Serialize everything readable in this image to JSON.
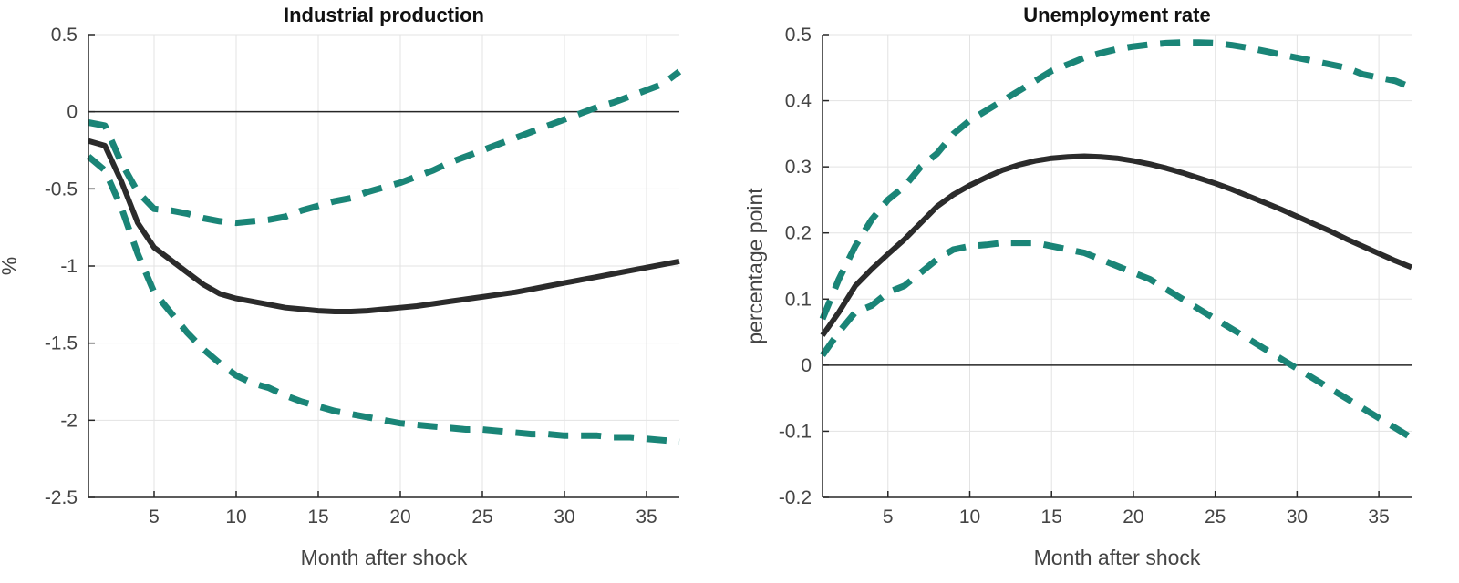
{
  "colors": {
    "median": "#2b2b2b",
    "band": "#1a8577",
    "grid": "#e3e3e3",
    "axis": "#262626",
    "zero_line": "#262626"
  },
  "chart_data": [
    {
      "type": "line",
      "title": "Industrial production",
      "xlabel": "Month after shock",
      "ylabel": "%",
      "xlim": [
        1,
        37
      ],
      "ylim": [
        -2.5,
        0.5
      ],
      "xticks": [
        5,
        10,
        15,
        20,
        25,
        30,
        35
      ],
      "yticks": [
        -2.5,
        -2,
        -1.5,
        -1,
        -0.5,
        0,
        0.5
      ],
      "ytick_labels": [
        "-2.5",
        "-2",
        "-1.5",
        "-1",
        "-0.5",
        "0",
        "0.5"
      ],
      "zero_line": 0,
      "grid": true,
      "x": [
        1,
        2,
        3,
        4,
        5,
        6,
        7,
        8,
        9,
        10,
        11,
        12,
        13,
        14,
        15,
        16,
        17,
        18,
        19,
        20,
        21,
        22,
        23,
        24,
        25,
        26,
        27,
        28,
        29,
        30,
        31,
        32,
        33,
        34,
        35,
        36,
        37
      ],
      "series": [
        {
          "role": "median",
          "style": "solid",
          "values": [
            -0.19,
            -0.22,
            -0.45,
            -0.72,
            -0.88,
            -0.96,
            -1.04,
            -1.12,
            -1.18,
            -1.21,
            -1.23,
            -1.25,
            -1.27,
            -1.28,
            -1.29,
            -1.295,
            -1.295,
            -1.29,
            -1.28,
            -1.27,
            -1.26,
            -1.245,
            -1.23,
            -1.215,
            -1.2,
            -1.185,
            -1.17,
            -1.15,
            -1.13,
            -1.11,
            -1.09,
            -1.07,
            -1.05,
            -1.03,
            -1.01,
            -0.99,
            -0.97
          ]
        },
        {
          "role": "upper-band",
          "style": "dashed",
          "values": [
            -0.07,
            -0.09,
            -0.33,
            -0.52,
            -0.63,
            -0.64,
            -0.66,
            -0.69,
            -0.71,
            -0.72,
            -0.71,
            -0.7,
            -0.68,
            -0.64,
            -0.61,
            -0.58,
            -0.56,
            -0.52,
            -0.49,
            -0.46,
            -0.42,
            -0.38,
            -0.33,
            -0.29,
            -0.25,
            -0.21,
            -0.17,
            -0.13,
            -0.09,
            -0.05,
            -0.01,
            0.03,
            0.06,
            0.1,
            0.14,
            0.18,
            0.26
          ]
        },
        {
          "role": "lower-band",
          "style": "dashed",
          "values": [
            -0.29,
            -0.38,
            -0.62,
            -0.92,
            -1.17,
            -1.3,
            -1.43,
            -1.54,
            -1.63,
            -1.71,
            -1.76,
            -1.79,
            -1.84,
            -1.88,
            -1.91,
            -1.94,
            -1.96,
            -1.98,
            -2.0,
            -2.02,
            -2.03,
            -2.04,
            -2.05,
            -2.06,
            -2.06,
            -2.07,
            -2.08,
            -2.09,
            -2.09,
            -2.1,
            -2.1,
            -2.1,
            -2.11,
            -2.11,
            -2.12,
            -2.13,
            -2.14
          ]
        }
      ]
    },
    {
      "type": "line",
      "title": "Unemployment rate",
      "xlabel": "Month after shock",
      "ylabel": "percentage point",
      "xlim": [
        1,
        37
      ],
      "ylim": [
        -0.2,
        0.5
      ],
      "xticks": [
        5,
        10,
        15,
        20,
        25,
        30,
        35
      ],
      "yticks": [
        -0.2,
        -0.1,
        0,
        0.1,
        0.2,
        0.3,
        0.4,
        0.5
      ],
      "ytick_labels": [
        "-0.2",
        "-0.1",
        "0",
        "0.1",
        "0.2",
        "0.3",
        "0.4",
        "0.5"
      ],
      "zero_line": 0,
      "grid": true,
      "x": [
        1,
        2,
        3,
        4,
        5,
        6,
        7,
        8,
        9,
        10,
        11,
        12,
        13,
        14,
        15,
        16,
        17,
        18,
        19,
        20,
        21,
        22,
        23,
        24,
        25,
        26,
        27,
        28,
        29,
        30,
        31,
        32,
        33,
        34,
        35,
        36,
        37
      ],
      "series": [
        {
          "role": "median",
          "style": "solid",
          "values": [
            0.045,
            0.08,
            0.12,
            0.145,
            0.168,
            0.19,
            0.215,
            0.24,
            0.258,
            0.272,
            0.284,
            0.295,
            0.303,
            0.309,
            0.313,
            0.315,
            0.316,
            0.315,
            0.313,
            0.309,
            0.304,
            0.298,
            0.291,
            0.283,
            0.275,
            0.266,
            0.256,
            0.246,
            0.236,
            0.225,
            0.214,
            0.203,
            0.191,
            0.18,
            0.169,
            0.158,
            0.148
          ]
        },
        {
          "role": "upper-band",
          "style": "dashed",
          "values": [
            0.07,
            0.13,
            0.18,
            0.22,
            0.25,
            0.27,
            0.3,
            0.32,
            0.35,
            0.37,
            0.385,
            0.4,
            0.415,
            0.43,
            0.445,
            0.455,
            0.465,
            0.472,
            0.478,
            0.482,
            0.485,
            0.487,
            0.488,
            0.488,
            0.487,
            0.484,
            0.48,
            0.475,
            0.47,
            0.465,
            0.46,
            0.455,
            0.45,
            0.44,
            0.435,
            0.43,
            0.42
          ]
        },
        {
          "role": "lower-band",
          "style": "dashed",
          "values": [
            0.015,
            0.05,
            0.08,
            0.09,
            0.11,
            0.12,
            0.14,
            0.16,
            0.175,
            0.18,
            0.182,
            0.185,
            0.185,
            0.185,
            0.18,
            0.175,
            0.17,
            0.16,
            0.15,
            0.14,
            0.13,
            0.115,
            0.1,
            0.085,
            0.07,
            0.055,
            0.04,
            0.025,
            0.01,
            -0.005,
            -0.02,
            -0.035,
            -0.05,
            -0.065,
            -0.08,
            -0.095,
            -0.11
          ]
        }
      ]
    }
  ]
}
